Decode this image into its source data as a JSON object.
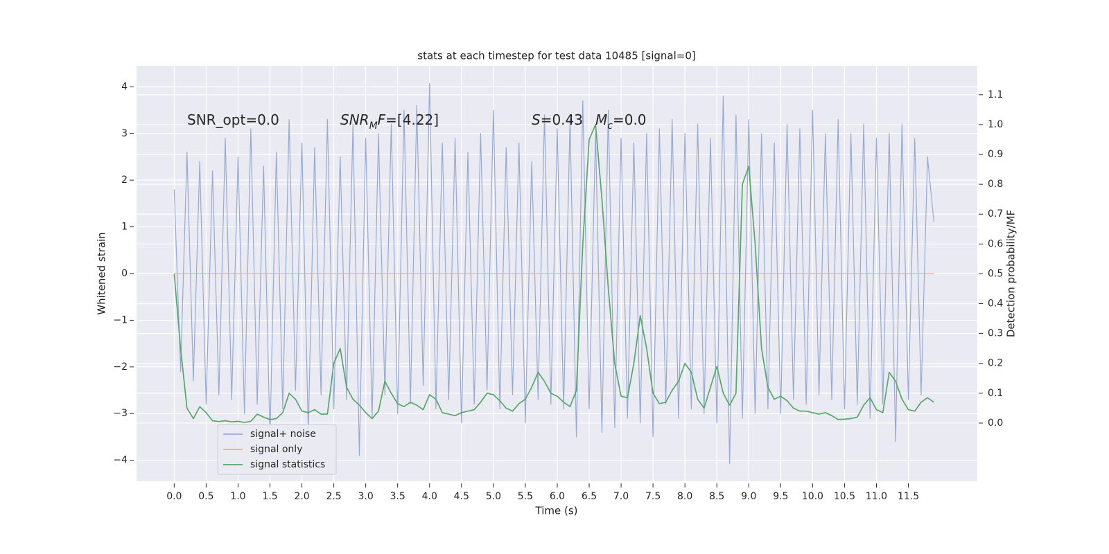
{
  "chart_data": {
    "type": "line",
    "title": "stats at each timestep for test data 10485 [signal=0]",
    "xlabel": "Time (s)",
    "ylabel": "Whitened strain",
    "y2label": "Detection probability/MF",
    "annotations": [
      [
        {
          "text": "SNR_opt=0.0"
        }
      ],
      [
        {
          "text": "SNR",
          "italic": true
        },
        {
          "text": "M",
          "italic": true,
          "sub": true
        },
        {
          "text": "F",
          "italic": true
        },
        {
          "text": "=[4.22]"
        }
      ],
      [
        {
          "text": "S",
          "italic": true
        },
        {
          "text": "=0.43"
        }
      ],
      [
        {
          "text": "M",
          "italic": true
        },
        {
          "text": "c",
          "italic": true,
          "sub": true
        },
        {
          "text": "=0.0"
        }
      ]
    ],
    "x": [
      0.0,
      0.1,
      0.2,
      0.3,
      0.4,
      0.5,
      0.6,
      0.7,
      0.8,
      0.9,
      1.0,
      1.1,
      1.2,
      1.3,
      1.4,
      1.5,
      1.6,
      1.7,
      1.8,
      1.9,
      2.0,
      2.1,
      2.2,
      2.3,
      2.4,
      2.5,
      2.6,
      2.7,
      2.8,
      2.9,
      3.0,
      3.1,
      3.2,
      3.3,
      3.4,
      3.5,
      3.6,
      3.7,
      3.8,
      3.9,
      4.0,
      4.1,
      4.2,
      4.3,
      4.4,
      4.5,
      4.6,
      4.7,
      4.8,
      4.9,
      5.0,
      5.1,
      5.2,
      5.3,
      5.4,
      5.5,
      5.6,
      5.7,
      5.8,
      5.9,
      6.0,
      6.1,
      6.2,
      6.3,
      6.4,
      6.5,
      6.6,
      6.7,
      6.8,
      6.9,
      7.0,
      7.1,
      7.2,
      7.3,
      7.4,
      7.5,
      7.6,
      7.7,
      7.8,
      7.9,
      8.0,
      8.1,
      8.2,
      8.3,
      8.4,
      8.5,
      8.6,
      8.7,
      8.8,
      8.9,
      9.0,
      9.1,
      9.2,
      9.3,
      9.4,
      9.5,
      9.6,
      9.7,
      9.8,
      9.9,
      10.0,
      10.1,
      10.2,
      10.3,
      10.4,
      10.5,
      10.6,
      10.7,
      10.8,
      10.9,
      11.0,
      11.1,
      11.2,
      11.3,
      11.4,
      11.5,
      11.6,
      11.7,
      11.8,
      11.9
    ],
    "series": [
      {
        "name": "signal+ noise",
        "color": "#97aad2",
        "axis": "y",
        "values": [
          1.8,
          -2.1,
          2.6,
          -2.3,
          2.4,
          -2.8,
          2.2,
          -2.6,
          2.9,
          -2.7,
          2.5,
          -3.0,
          3.1,
          -2.8,
          2.3,
          -3.5,
          2.6,
          -2.9,
          3.3,
          -2.5,
          2.8,
          -3.4,
          2.7,
          -2.6,
          3.3,
          -2.9,
          2.5,
          -2.7,
          3.2,
          -3.9,
          2.9,
          -3.1,
          3.0,
          -2.6,
          3.2,
          -3.0,
          3.5,
          -2.8,
          3.6,
          -2.4,
          4.07,
          -2.9,
          2.8,
          -2.7,
          2.9,
          -3.2,
          2.6,
          -2.8,
          3.0,
          -2.5,
          3.5,
          -2.9,
          2.7,
          -2.6,
          2.8,
          -3.2,
          2.4,
          -2.7,
          3.4,
          -2.8,
          3.1,
          -2.9,
          3.3,
          -3.5,
          3.7,
          -2.9,
          3.0,
          -3.4,
          3.5,
          -3.3,
          2.9,
          -3.1,
          2.8,
          -3.2,
          3.0,
          -3.5,
          3.1,
          -2.8,
          3.3,
          -3.1,
          3.0,
          -2.9,
          3.2,
          -3.0,
          2.9,
          -3.2,
          3.8,
          -4.07,
          3.4,
          -3.1,
          3.3,
          -3.0,
          3.0,
          -2.9,
          2.8,
          -3.0,
          3.2,
          -2.7,
          3.1,
          -2.8,
          3.5,
          -2.6,
          3.0,
          -2.7,
          3.3,
          -2.9,
          3.0,
          -2.8,
          3.2,
          -3.1,
          2.9,
          -2.8,
          3.0,
          -3.6,
          3.2,
          -2.7,
          2.9,
          -2.6,
          2.5,
          1.1
        ]
      },
      {
        "name": "signal only",
        "color": "#e9ab8f",
        "axis": "y",
        "values": [
          0,
          0,
          0,
          0,
          0,
          0,
          0,
          0,
          0,
          0,
          0,
          0,
          0,
          0,
          0,
          0,
          0,
          0,
          0,
          0,
          0,
          0,
          0,
          0,
          0,
          0,
          0,
          0,
          0,
          0,
          0,
          0,
          0,
          0,
          0,
          0,
          0,
          0,
          0,
          0,
          0,
          0,
          0,
          0,
          0,
          0,
          0,
          0,
          0,
          0,
          0,
          0,
          0,
          0,
          0,
          0,
          0,
          0,
          0,
          0,
          0,
          0,
          0,
          0,
          0,
          0,
          0,
          0,
          0,
          0,
          0,
          0,
          0,
          0,
          0,
          0,
          0,
          0,
          0,
          0,
          0,
          0,
          0,
          0,
          0,
          0,
          0,
          0,
          0,
          0,
          0,
          0,
          0,
          0,
          0,
          0,
          0,
          0,
          0,
          0,
          0,
          0,
          0,
          0,
          0,
          0,
          0,
          0,
          0,
          0,
          0,
          0,
          0,
          0,
          0,
          0,
          0,
          0,
          0,
          0
        ]
      },
      {
        "name": "signal statistics",
        "color": "#55a868",
        "axis": "y2",
        "values": [
          0.5,
          0.25,
          0.05,
          0.015,
          0.055,
          0.035,
          0.008,
          0.005,
          0.008,
          0.004,
          0.006,
          0.002,
          0.006,
          0.03,
          0.02,
          0.012,
          0.015,
          0.035,
          0.1,
          0.08,
          0.04,
          0.035,
          0.045,
          0.03,
          0.03,
          0.2,
          0.25,
          0.12,
          0.08,
          0.06,
          0.035,
          0.015,
          0.04,
          0.14,
          0.1,
          0.065,
          0.055,
          0.07,
          0.06,
          0.045,
          0.095,
          0.08,
          0.035,
          0.03,
          0.025,
          0.035,
          0.04,
          0.045,
          0.07,
          0.1,
          0.095,
          0.075,
          0.05,
          0.04,
          0.065,
          0.08,
          0.12,
          0.17,
          0.14,
          0.1,
          0.09,
          0.07,
          0.055,
          0.11,
          0.6,
          0.95,
          1.0,
          0.75,
          0.45,
          0.2,
          0.09,
          0.085,
          0.2,
          0.36,
          0.25,
          0.1,
          0.065,
          0.07,
          0.11,
          0.14,
          0.2,
          0.17,
          0.08,
          0.05,
          0.12,
          0.19,
          0.1,
          0.06,
          0.1,
          0.8,
          0.86,
          0.6,
          0.25,
          0.12,
          0.08,
          0.09,
          0.075,
          0.05,
          0.04,
          0.04,
          0.035,
          0.03,
          0.035,
          0.025,
          0.012,
          0.013,
          0.015,
          0.02,
          0.06,
          0.085,
          0.045,
          0.035,
          0.17,
          0.14,
          0.08,
          0.045,
          0.04,
          0.07,
          0.085,
          0.07
        ]
      }
    ],
    "xlim": [
      -0.59,
      12.58
    ],
    "xticks": [
      {
        "value": 0,
        "label": "0.0"
      },
      0.5,
      {
        "value": 1,
        "label": "1.0"
      },
      1.5,
      {
        "value": 2,
        "label": "2.0"
      },
      2.5,
      {
        "value": 3,
        "label": "3.0"
      },
      3.5,
      {
        "value": 4,
        "label": "4.0"
      },
      4.5,
      {
        "value": 5,
        "label": "5.0"
      },
      5.5,
      {
        "value": 6,
        "label": "6.0"
      },
      6.5,
      {
        "value": 7,
        "label": "7.0"
      },
      7.5,
      {
        "value": 8,
        "label": "8.0"
      },
      8.5,
      {
        "value": 9,
        "label": "9.0"
      },
      9.5,
      {
        "value": 10,
        "label": "10.0"
      },
      10.5,
      {
        "value": 11,
        "label": "11.0"
      },
      11.5
    ],
    "ylim": [
      -4.45,
      4.45
    ],
    "yticks": [
      {
        "value": -4,
        "label": "−4"
      },
      {
        "value": -3,
        "label": "−3"
      },
      {
        "value": -2,
        "label": "−2"
      },
      {
        "value": -1,
        "label": "−1"
      },
      0,
      1,
      2,
      3,
      4
    ],
    "y2lim": [
      -0.195,
      1.197
    ],
    "y2ticks": [
      {
        "value": 0,
        "label": "0.0"
      },
      0.1,
      0.2,
      0.3,
      0.4,
      0.5,
      0.6,
      0.7,
      0.8,
      0.9,
      {
        "value": 1,
        "label": "1.0"
      },
      1.1
    ],
    "grid": true,
    "legend": "lower left"
  }
}
